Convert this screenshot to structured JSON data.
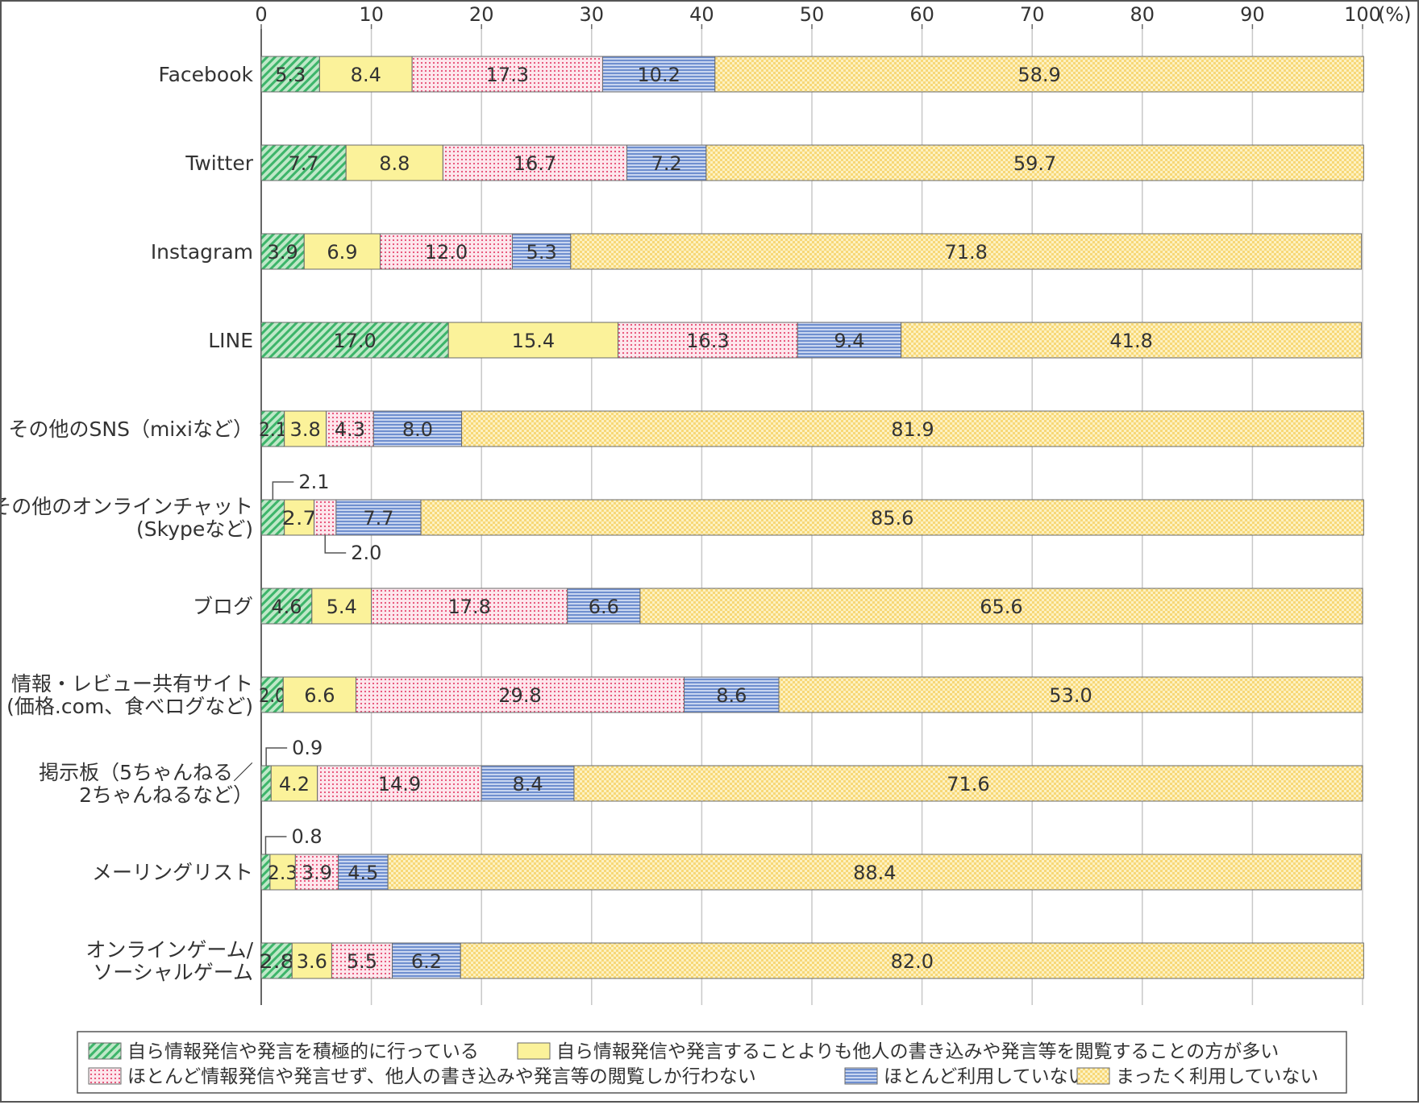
{
  "chart_data": {
    "type": "bar",
    "orientation": "horizontal",
    "stacked": true,
    "title": "",
    "xlabel": "",
    "ylabel": "",
    "xlim": [
      0,
      100
    ],
    "x_unit_label": "(%)",
    "x_ticks": [
      "0",
      "10",
      "20",
      "30",
      "40",
      "50",
      "60",
      "70",
      "80",
      "90",
      "100"
    ],
    "grid": "vertical",
    "legend_position": "bottom",
    "categories": [
      [
        "Facebook"
      ],
      [
        "Twitter"
      ],
      [
        "Instagram"
      ],
      [
        "LINE"
      ],
      [
        "その他のSNS（mixiなど）"
      ],
      [
        "その他のオンラインチャット",
        "(Skypeなど)"
      ],
      [
        "ブログ"
      ],
      [
        "情報・レビュー共有サイト",
        "(価格.com、食べログなど)"
      ],
      [
        "掲示板（5ちゃんねる／",
        "2ちゃんねるなど）"
      ],
      [
        "メーリングリスト"
      ],
      [
        "オンラインゲーム/",
        "ソーシャルゲーム"
      ]
    ],
    "series": [
      {
        "name": "自ら情報発信や発言を積極的に行っている",
        "color": "#3db56a",
        "values": [
          5.3,
          7.7,
          3.9,
          17.0,
          2.1,
          2.1,
          4.6,
          2.0,
          0.9,
          0.8,
          2.8
        ]
      },
      {
        "name": "自ら情報発信や発言することよりも他人の書き込みや発言等を閲覧することの方が多い",
        "color": "#fbf29a",
        "values": [
          8.4,
          8.8,
          6.9,
          15.4,
          3.8,
          2.7,
          5.4,
          6.6,
          4.2,
          2.3,
          3.6
        ]
      },
      {
        "name": "ほとんど情報発信や発言せず、他人の書き込みや発言等の閲覧しか行わない",
        "color": "#e85a7e",
        "values": [
          17.3,
          16.7,
          12.0,
          16.3,
          4.3,
          2.0,
          17.8,
          29.8,
          14.9,
          3.9,
          5.5
        ]
      },
      {
        "name": "ほとんど利用していない",
        "color": "#6f8fcf",
        "values": [
          10.2,
          7.2,
          5.3,
          9.4,
          8.0,
          7.7,
          6.6,
          8.6,
          8.4,
          4.5,
          6.2
        ]
      },
      {
        "name": "まったく利用していない",
        "color": "#f7d877",
        "values": [
          58.9,
          59.7,
          71.8,
          41.8,
          81.9,
          85.6,
          65.6,
          53.0,
          71.6,
          88.4,
          82.0
        ]
      }
    ],
    "callouts": [
      {
        "category_index": 5,
        "series_index": 0,
        "text": "2.1",
        "side": "above"
      },
      {
        "category_index": 5,
        "series_index": 2,
        "text": "2.0",
        "side": "below"
      },
      {
        "category_index": 8,
        "series_index": 0,
        "text": "0.9",
        "side": "above"
      },
      {
        "category_index": 9,
        "series_index": 0,
        "text": "0.8",
        "side": "above"
      }
    ],
    "label_overrides": {
      "5-0": "",
      "5-2": "",
      "8-0": "",
      "9-0": ""
    }
  }
}
